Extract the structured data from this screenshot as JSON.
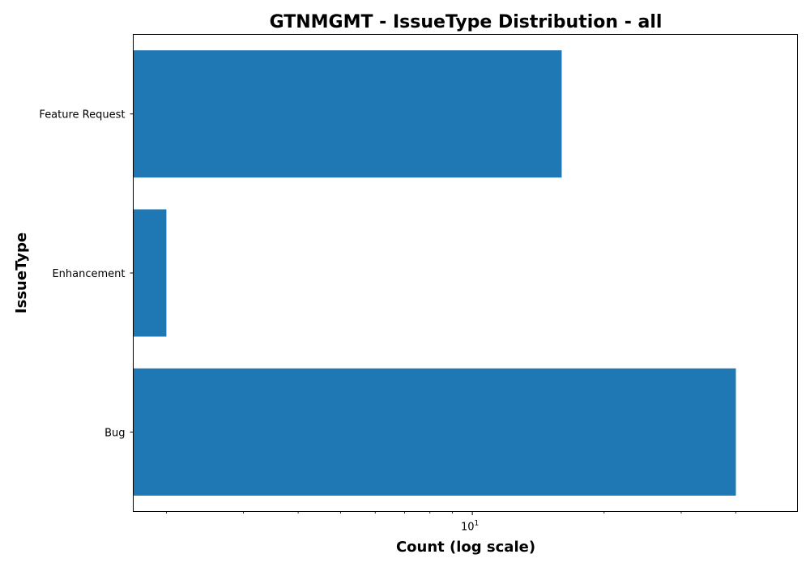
{
  "chart_data": {
    "type": "bar",
    "orientation": "horizontal",
    "title": "GTNMGMT - IssueType Distribution - all",
    "xlabel": "Count (log scale)",
    "ylabel": "IssueType",
    "xscale": "log",
    "xlim": [
      1.68,
      55.3
    ],
    "categories": [
      "Bug",
      "Enhancement",
      "Feature Request"
    ],
    "values": [
      40,
      2,
      16
    ],
    "bar_color": "#1f77b4",
    "grid": false,
    "legend": "none",
    "xtick_major": [
      {
        "value": 10,
        "base": "10",
        "exponent": "1"
      }
    ],
    "xtick_minor": [
      2,
      3,
      4,
      5,
      6,
      7,
      8,
      9,
      20,
      30,
      40
    ]
  }
}
